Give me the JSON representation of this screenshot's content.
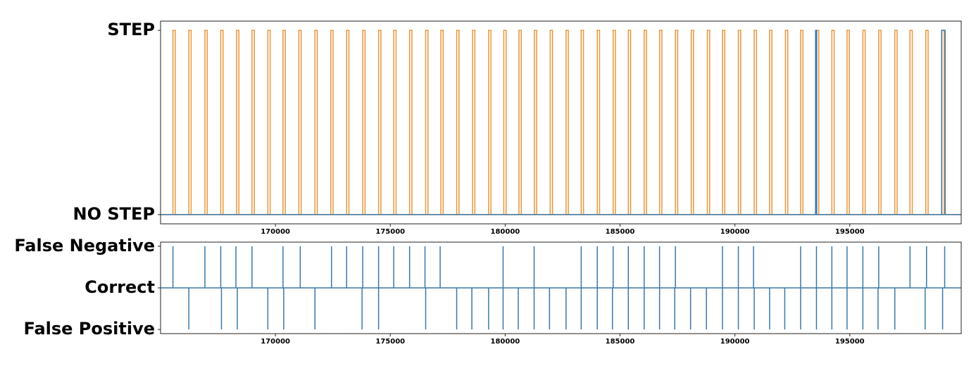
{
  "chart_data": [
    {
      "type": "step",
      "xlim": [
        165000,
        199850
      ],
      "ylim": [
        -0.05,
        1.05
      ],
      "xticks": [
        170000,
        175000,
        180000,
        185000,
        190000,
        195000
      ],
      "yticks": [
        {
          "value": 0,
          "label": "NO STEP"
        },
        {
          "value": 1,
          "label": "STEP"
        }
      ],
      "series": [
        {
          "color": "#e8963c",
          "starts": [
            165540,
            166230,
            166930,
            167620,
            168310,
            168980,
            169670,
            170330,
            171020,
            171720,
            172410,
            173100,
            173800,
            174490,
            175150,
            175840,
            176540,
            177200,
            177890,
            178580,
            179280,
            179940,
            180600,
            181270,
            181960,
            182650,
            183310,
            184010,
            184700,
            185360,
            186050,
            186720,
            187410,
            188100,
            188800,
            189460,
            190150,
            190840,
            191510,
            192200,
            192860,
            193550,
            194220,
            194880,
            195570,
            196260,
            196960,
            197620,
            198310,
            199010
          ],
          "ends": [
            165640,
            166330,
            167030,
            167720,
            168410,
            169080,
            169770,
            170430,
            171120,
            171820,
            172510,
            173200,
            173900,
            174590,
            175250,
            175940,
            176640,
            177300,
            177990,
            178680,
            179380,
            180040,
            180700,
            181370,
            182060,
            182750,
            183410,
            184110,
            184800,
            185460,
            186150,
            186820,
            187510,
            188200,
            188900,
            189560,
            190250,
            190940,
            191610,
            192300,
            192960,
            193650,
            194320,
            194980,
            195670,
            196360,
            197060,
            197720,
            198410,
            199110
          ]
        },
        {
          "color": "#3a78a8",
          "starts": [
            193510,
            199000
          ],
          "ends": [
            193560,
            199150
          ]
        }
      ]
    },
    {
      "type": "event",
      "xlim": [
        165000,
        199850
      ],
      "ylim": [
        -1.1,
        1.1
      ],
      "xticks": [
        170000,
        175000,
        180000,
        185000,
        190000,
        195000
      ],
      "yticks": [
        {
          "value": -1,
          "label": "False Positive"
        },
        {
          "value": 0,
          "label": "Correct"
        },
        {
          "value": 1,
          "label": "False Negative"
        }
      ],
      "color": "#3a78a8",
      "x": [
        165540,
        166930,
        167620,
        168280,
        168980,
        170330,
        171080,
        172440,
        173100,
        173800,
        174490,
        175150,
        175840,
        176510,
        177170,
        179910,
        181260,
        183310,
        184010,
        184700,
        185360,
        186050,
        186720,
        187410,
        189460,
        190150,
        190810,
        192860,
        193550,
        194220,
        194880,
        195570,
        196260,
        197620,
        198340,
        199130,
        166230,
        167650,
        168340,
        169670,
        170360,
        171720,
        173770,
        174490,
        176540,
        177890,
        178550,
        179280,
        179910,
        180570,
        181260,
        181930,
        182650,
        183310,
        184010,
        184670,
        185360,
        186050,
        186720,
        187380,
        188070,
        188760,
        189460,
        190150,
        190840,
        191510,
        192170,
        192860,
        193550,
        194220,
        194880,
        195570,
        196230,
        196960,
        198280,
        199040
      ],
      "values": [
        1,
        1,
        1,
        1,
        1,
        1,
        1,
        1,
        1,
        1,
        1,
        1,
        1,
        1,
        1,
        1,
        1,
        1,
        1,
        1,
        1,
        1,
        1,
        1,
        1,
        1,
        1,
        1,
        1,
        1,
        1,
        1,
        1,
        1,
        1,
        1,
        -1,
        -1,
        -1,
        -1,
        -1,
        -1,
        -1,
        -1,
        -1,
        -1,
        -1,
        -1,
        -1,
        -1,
        -1,
        -1,
        -1,
        -1,
        -1,
        -1,
        -1,
        -1,
        -1,
        -1,
        -1,
        -1,
        -1,
        -1,
        -1,
        -1,
        -1,
        -1,
        -1,
        -1,
        -1,
        -1,
        -1,
        -1,
        -1,
        -1
      ]
    }
  ]
}
